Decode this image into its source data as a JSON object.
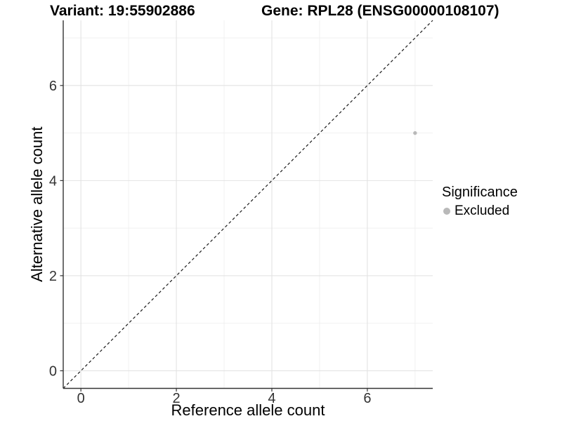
{
  "chart_data": {
    "type": "scatter",
    "title_left": "Variant: 19:55902886",
    "title_right": "Gene: RPL28 (ENSG00000108107)",
    "xlabel": "Reference allele count",
    "ylabel": "Alternative allele count",
    "xlim": [
      -0.37,
      7.37
    ],
    "ylim": [
      -0.37,
      7.37
    ],
    "x_major_ticks": [
      0,
      2,
      4,
      6
    ],
    "y_major_ticks": [
      0,
      2,
      4,
      6
    ],
    "x_tick_labels": [
      "0",
      "2",
      "4",
      "6"
    ],
    "y_tick_labels": [
      "0",
      "2",
      "4",
      "6"
    ],
    "x_minor_ticks": [
      1,
      3,
      5,
      7
    ],
    "y_minor_ticks": [
      1,
      3,
      5,
      7
    ],
    "grid": true,
    "legend_position": "right",
    "series": [
      {
        "name": "Excluded",
        "color": "#b9b9b9",
        "points": [
          {
            "x": 7,
            "y": 5
          }
        ]
      }
    ],
    "reference_line": {
      "kind": "identity y=x",
      "style": "dashed",
      "color": "#1a1a1a"
    },
    "legend": {
      "title": "Significance",
      "items": [
        {
          "label": "Excluded",
          "color": "#b9b9b9"
        }
      ]
    }
  },
  "colors": {
    "background": "#ffffff",
    "grid_major": "#e3e3e3",
    "grid_minor": "#efefef",
    "axis_line": "#333333",
    "tick_text": "#333333",
    "title_text": "#000000",
    "point": "#b9b9b9"
  }
}
